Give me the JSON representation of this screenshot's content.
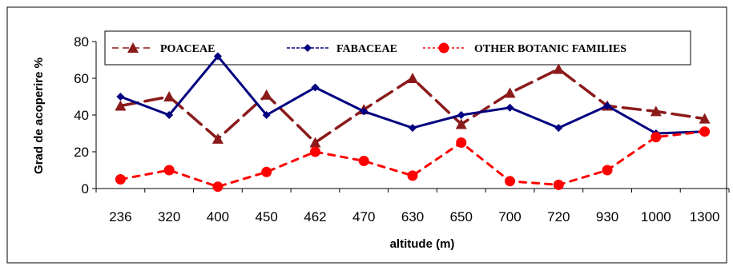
{
  "chart_data": {
    "type": "line",
    "title": "",
    "xlabel": "altitude (m)",
    "ylabel": "Grad de acoperire  %",
    "ylim": [
      0,
      80
    ],
    "yticks": [
      0,
      20,
      40,
      60,
      80
    ],
    "grid": false,
    "legend_position": "top",
    "categories": [
      "236",
      "320",
      "400",
      "450",
      "462",
      "470",
      "630",
      "650",
      "700",
      "720",
      "930",
      "1000",
      "1300"
    ],
    "series": [
      {
        "name": "POACEAE",
        "color": "#8b1a1a",
        "line_style": "long-dash",
        "marker": "triangle",
        "values": [
          45,
          50,
          27,
          51,
          25,
          43,
          60,
          35,
          52,
          65,
          45,
          42,
          38
        ]
      },
      {
        "name": "FABACEAE",
        "color": "#000080",
        "line_style": "solid",
        "marker": "diamond",
        "values": [
          50,
          40,
          72,
          40,
          55,
          42,
          33,
          40,
          44,
          33,
          45,
          30,
          31
        ]
      },
      {
        "name": "OTHER BOTANIC FAMILIES",
        "color": "#ff0000",
        "line_style": "dotted",
        "marker": "circle",
        "values": [
          5,
          10,
          1,
          9,
          20,
          15,
          7,
          25,
          4,
          2,
          10,
          28,
          31
        ]
      }
    ]
  }
}
